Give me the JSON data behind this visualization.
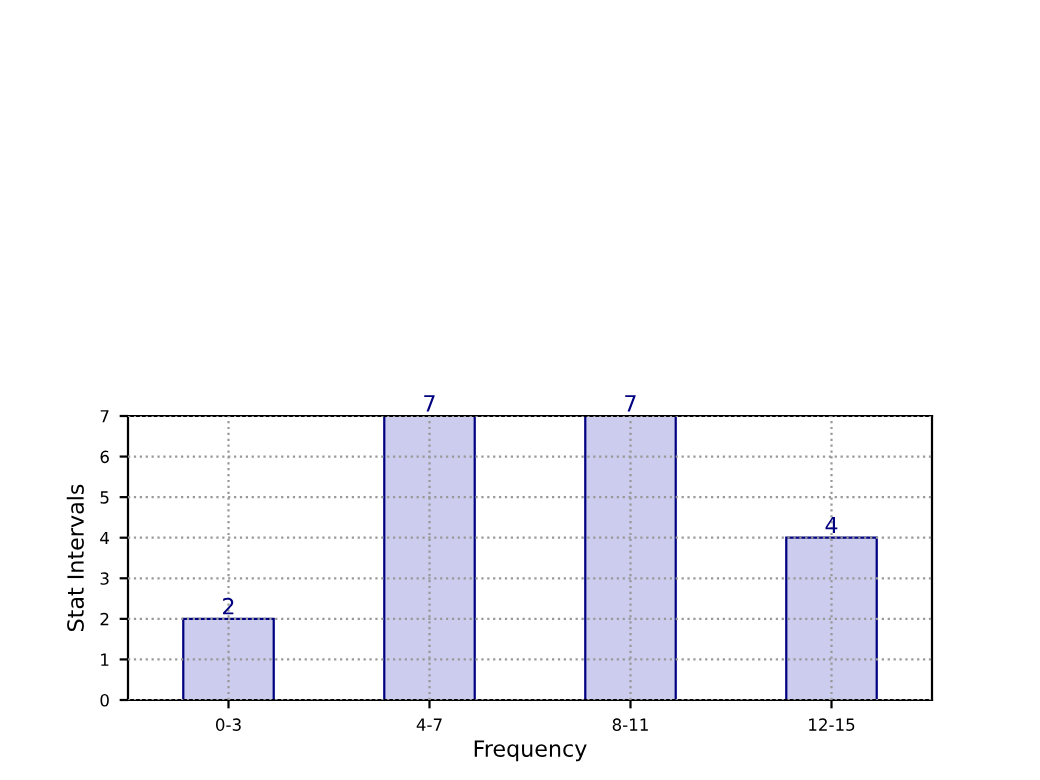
{
  "chart_data": {
    "type": "bar",
    "xlabel": "Frequency",
    "ylabel": "Stat Intervals",
    "categories": [
      "0-3",
      "4-7",
      "8-11",
      "12-15"
    ],
    "values": [
      2,
      7,
      7,
      4
    ],
    "color": "#ccccee",
    "ylim": [
      0,
      7
    ],
    "yticks": [
      0,
      1,
      2,
      3,
      4,
      5,
      6,
      7
    ],
    "grid": true,
    "data_labels": true
  }
}
